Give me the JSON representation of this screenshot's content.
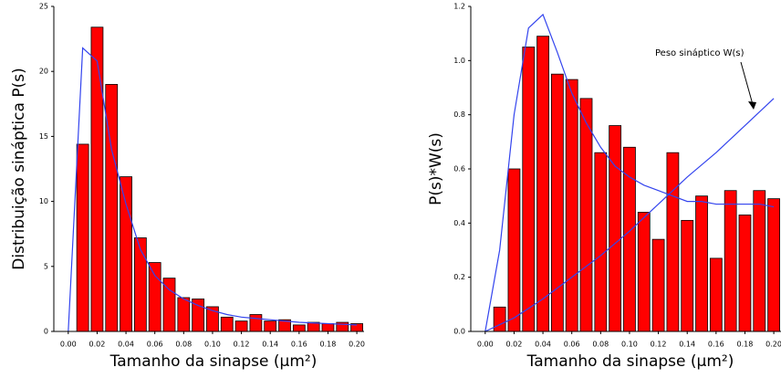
{
  "chart_data": [
    {
      "type": "bar",
      "y_label": "Distribuição sináptica P(s)",
      "x_label": "Tamanho da sinapse (μm²)",
      "xlim": [
        -0.01,
        0.205
      ],
      "ylim": [
        0,
        25
      ],
      "xticks": [
        {
          "value": 0,
          "label": "0.00"
        },
        0.02,
        0.04,
        0.06,
        0.08,
        {
          "value": 0.1,
          "label": "0.10"
        },
        0.12,
        0.14,
        0.16,
        0.18,
        {
          "value": 0.2,
          "label": "0.20"
        }
      ],
      "yticks": [
        0,
        5,
        10,
        15,
        20,
        25
      ],
      "series": [
        {
          "type": "bar",
          "color": "#ff0000",
          "x": [
            0.01,
            0.02,
            0.03,
            0.04,
            0.05,
            0.06,
            0.07,
            0.08,
            0.09,
            0.1,
            0.11,
            0.12,
            0.13,
            0.14,
            0.15,
            0.16,
            0.17,
            0.18,
            0.19,
            0.2
          ],
          "values": [
            14.4,
            23.4,
            19.0,
            11.9,
            7.2,
            5.3,
            4.1,
            2.6,
            2.5,
            1.9,
            1.1,
            0.8,
            1.3,
            0.8,
            0.9,
            0.5,
            0.7,
            0.6,
            0.7,
            0.6
          ]
        },
        {
          "type": "line",
          "color": "#3344ee",
          "x": [
            0,
            0.01,
            0.02,
            0.03,
            0.04,
            0.05,
            0.06,
            0.07,
            0.08,
            0.09,
            0.1,
            0.11,
            0.12,
            0.13,
            0.14,
            0.15,
            0.16,
            0.17,
            0.18,
            0.19,
            0.2
          ],
          "values": [
            0,
            21.8,
            20.8,
            14,
            9.8,
            6.3,
            4.3,
            3.2,
            2.5,
            2.0,
            1.6,
            1.3,
            1.1,
            1.0,
            0.9,
            0.8,
            0.7,
            0.65,
            0.6,
            0.55,
            0.5
          ]
        }
      ]
    },
    {
      "type": "bar",
      "y_label": "P(s)*W(s)",
      "x_label": "Tamanho da sinapse (μm²)",
      "annotation": "Peso sináptico W(s)",
      "xlim": [
        -0.01,
        0.205
      ],
      "ylim": [
        0,
        1.2
      ],
      "xticks": [
        {
          "value": 0,
          "label": "0.00"
        },
        0.02,
        0.04,
        0.06,
        0.08,
        {
          "value": 0.1,
          "label": "0.10"
        },
        0.12,
        0.14,
        0.16,
        0.18,
        {
          "value": 0.2,
          "label": "0.20"
        }
      ],
      "yticks": [
        {
          "value": 0,
          "label": "0.0"
        },
        0.2,
        0.4,
        0.6,
        0.8,
        {
          "value": 1,
          "label": "1.0"
        },
        1.2
      ],
      "series": [
        {
          "type": "bar",
          "color": "#ff0000",
          "x": [
            0.01,
            0.02,
            0.03,
            0.04,
            0.05,
            0.06,
            0.07,
            0.08,
            0.09,
            0.1,
            0.11,
            0.12,
            0.13,
            0.14,
            0.15,
            0.16,
            0.17,
            0.18,
            0.19,
            0.2
          ],
          "values": [
            0.09,
            0.6,
            1.05,
            1.09,
            0.95,
            0.93,
            0.86,
            0.66,
            0.76,
            0.68,
            0.44,
            0.34,
            0.66,
            0.41,
            0.5,
            0.27,
            0.52,
            0.43,
            0.52,
            0.49
          ]
        },
        {
          "type": "line",
          "color": "#3344ee",
          "x": [
            0,
            0.01,
            0.02,
            0.03,
            0.04,
            0.05,
            0.06,
            0.07,
            0.08,
            0.09,
            0.1,
            0.11,
            0.12,
            0.13,
            0.14,
            0.15,
            0.16,
            0.17,
            0.18,
            0.19,
            0.2
          ],
          "values": [
            0,
            0.3,
            0.8,
            1.12,
            1.17,
            1.03,
            0.88,
            0.77,
            0.68,
            0.61,
            0.57,
            0.54,
            0.52,
            0.5,
            0.48,
            0.48,
            0.47,
            0.47,
            0.47,
            0.47,
            0.46
          ]
        },
        {
          "type": "line",
          "color": "#3344ee",
          "x": [
            0,
            0.02,
            0.04,
            0.06,
            0.08,
            0.1,
            0.12,
            0.14,
            0.16,
            0.18,
            0.2
          ],
          "values": [
            0,
            0.05,
            0.12,
            0.2,
            0.28,
            0.37,
            0.47,
            0.57,
            0.66,
            0.76,
            0.86
          ]
        }
      ]
    }
  ]
}
